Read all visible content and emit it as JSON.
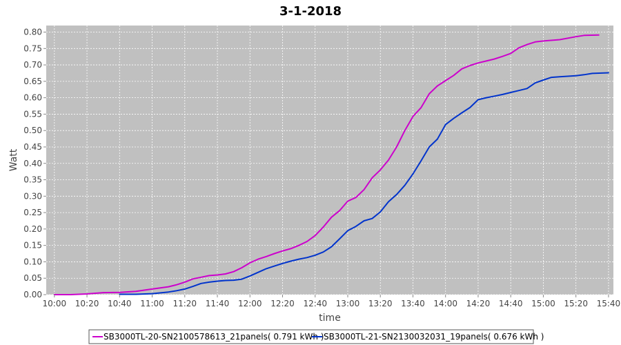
{
  "chart_data": {
    "type": "line",
    "title": "3-1-2018",
    "xlabel": "time",
    "ylabel": "Watt",
    "ylim": [
      0,
      0.82
    ],
    "xlim": [
      "09:55",
      "15:43"
    ],
    "grid": true,
    "legend_position": "bottom",
    "y_ticks": [
      "0.00",
      "0.05",
      "0.10",
      "0.15",
      "0.20",
      "0.25",
      "0.30",
      "0.35",
      "0.40",
      "0.45",
      "0.50",
      "0.55",
      "0.60",
      "0.65",
      "0.70",
      "0.75",
      "0.80"
    ],
    "x_ticks": [
      "10:00",
      "10:20",
      "10:40",
      "11:00",
      "11:20",
      "11:40",
      "12:00",
      "12:20",
      "12:40",
      "13:00",
      "13:20",
      "13:40",
      "14:00",
      "14:20",
      "14:40",
      "15:00",
      "15:20",
      "15:40"
    ],
    "series": [
      {
        "name": "SB3000TL-20-SN2100578613_21panels",
        "legend_label": "SB3000TL-20-SN2100578613_21panels( 0.791 kWh )",
        "color": "#cc00cc",
        "points": [
          [
            "10:00",
            0.0
          ],
          [
            "10:10",
            0.0
          ],
          [
            "10:20",
            0.002
          ],
          [
            "10:30",
            0.006
          ],
          [
            "10:40",
            0.007
          ],
          [
            "10:50",
            0.01
          ],
          [
            "11:00",
            0.017
          ],
          [
            "11:10",
            0.024
          ],
          [
            "11:15",
            0.03
          ],
          [
            "11:20",
            0.038
          ],
          [
            "11:25",
            0.048
          ],
          [
            "11:30",
            0.053
          ],
          [
            "11:35",
            0.058
          ],
          [
            "11:40",
            0.06
          ],
          [
            "11:45",
            0.063
          ],
          [
            "11:50",
            0.07
          ],
          [
            "11:55",
            0.082
          ],
          [
            "12:00",
            0.097
          ],
          [
            "12:05",
            0.108
          ],
          [
            "12:10",
            0.116
          ],
          [
            "12:15",
            0.125
          ],
          [
            "12:20",
            0.133
          ],
          [
            "12:25",
            0.14
          ],
          [
            "12:30",
            0.15
          ],
          [
            "12:35",
            0.162
          ],
          [
            "12:40",
            0.18
          ],
          [
            "12:45",
            0.206
          ],
          [
            "12:50",
            0.236
          ],
          [
            "12:55",
            0.256
          ],
          [
            "13:00",
            0.285
          ],
          [
            "13:05",
            0.296
          ],
          [
            "13:10",
            0.32
          ],
          [
            "13:15",
            0.356
          ],
          [
            "13:20",
            0.38
          ],
          [
            "13:25",
            0.41
          ],
          [
            "13:30",
            0.45
          ],
          [
            "13:35",
            0.5
          ],
          [
            "13:40",
            0.543
          ],
          [
            "13:45",
            0.57
          ],
          [
            "13:50",
            0.612
          ],
          [
            "13:55",
            0.636
          ],
          [
            "14:00",
            0.652
          ],
          [
            "14:05",
            0.668
          ],
          [
            "14:10",
            0.688
          ],
          [
            "14:15",
            0.698
          ],
          [
            "14:20",
            0.706
          ],
          [
            "14:25",
            0.712
          ],
          [
            "14:30",
            0.718
          ],
          [
            "14:35",
            0.726
          ],
          [
            "14:40",
            0.735
          ],
          [
            "14:45",
            0.752
          ],
          [
            "14:50",
            0.762
          ],
          [
            "14:55",
            0.77
          ],
          [
            "15:00",
            0.773
          ],
          [
            "15:10",
            0.777
          ],
          [
            "15:20",
            0.786
          ],
          [
            "15:25",
            0.79
          ],
          [
            "15:34",
            0.791
          ]
        ]
      },
      {
        "name": "SB3000TL-21-SN2130032031_19panels",
        "legend_label": "SB3000TL-21-SN2130032031_19panels( 0.676 kWh )",
        "color": "#0033cc",
        "points": [
          [
            "10:40",
            0.001
          ],
          [
            "10:50",
            0.001
          ],
          [
            "11:00",
            0.003
          ],
          [
            "11:10",
            0.008
          ],
          [
            "11:15",
            0.012
          ],
          [
            "11:20",
            0.017
          ],
          [
            "11:25",
            0.025
          ],
          [
            "11:30",
            0.034
          ],
          [
            "11:35",
            0.038
          ],
          [
            "11:40",
            0.041
          ],
          [
            "11:45",
            0.043
          ],
          [
            "11:50",
            0.044
          ],
          [
            "11:55",
            0.047
          ],
          [
            "12:00",
            0.057
          ],
          [
            "12:05",
            0.068
          ],
          [
            "12:10",
            0.079
          ],
          [
            "12:15",
            0.087
          ],
          [
            "12:20",
            0.095
          ],
          [
            "12:25",
            0.102
          ],
          [
            "12:30",
            0.108
          ],
          [
            "12:35",
            0.113
          ],
          [
            "12:40",
            0.12
          ],
          [
            "12:45",
            0.13
          ],
          [
            "12:50",
            0.146
          ],
          [
            "12:55",
            0.17
          ],
          [
            "13:00",
            0.195
          ],
          [
            "13:05",
            0.208
          ],
          [
            "13:10",
            0.225
          ],
          [
            "13:15",
            0.232
          ],
          [
            "13:20",
            0.252
          ],
          [
            "13:25",
            0.283
          ],
          [
            "13:30",
            0.305
          ],
          [
            "13:35",
            0.333
          ],
          [
            "13:40",
            0.368
          ],
          [
            "13:45",
            0.408
          ],
          [
            "13:50",
            0.45
          ],
          [
            "13:55",
            0.474
          ],
          [
            "14:00",
            0.518
          ],
          [
            "14:05",
            0.537
          ],
          [
            "14:10",
            0.554
          ],
          [
            "14:15",
            0.57
          ],
          [
            "14:20",
            0.594
          ],
          [
            "14:25",
            0.6
          ],
          [
            "14:30",
            0.605
          ],
          [
            "14:35",
            0.61
          ],
          [
            "14:40",
            0.616
          ],
          [
            "14:45",
            0.622
          ],
          [
            "14:50",
            0.628
          ],
          [
            "14:55",
            0.645
          ],
          [
            "15:00",
            0.654
          ],
          [
            "15:05",
            0.662
          ],
          [
            "15:10",
            0.664
          ],
          [
            "15:20",
            0.667
          ],
          [
            "15:25",
            0.67
          ],
          [
            "15:30",
            0.674
          ],
          [
            "15:40",
            0.676
          ]
        ]
      }
    ]
  }
}
